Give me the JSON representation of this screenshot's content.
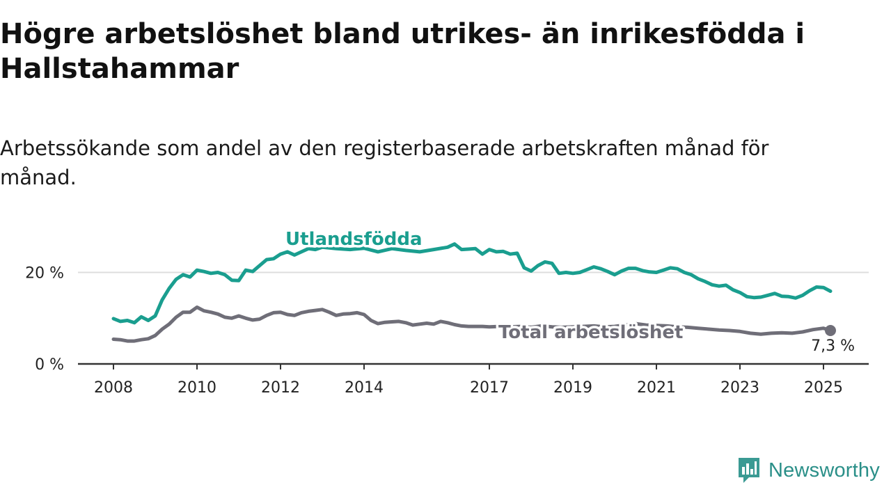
{
  "title": "Högre arbetslöshet bland utrikes- än inrikesfödda i Hallstahammar",
  "subtitle": "Arbetssökande som andel av den registerbaserade arbetskraften månad för månad.",
  "brand": {
    "name": "Newsworthy",
    "icon": "newsworthy-logo-icon",
    "color": "#3a9a93"
  },
  "colors": {
    "utlandsfodda": "#1a9e8f",
    "total": "#6f6e78",
    "grid": "#dddddd",
    "axis": "#333333"
  },
  "chart_data": {
    "type": "line",
    "title": "Högre arbetslöshet bland utrikes- än inrikesfödda i Hallstahammar",
    "subtitle": "Arbetssökande som andel av den registerbaserade arbetskraften månad för månad.",
    "xlabel": "",
    "ylabel": "",
    "xlim": [
      "2008-01",
      "2025-07"
    ],
    "ylim": [
      0,
      30
    ],
    "grid": "horizontal",
    "legend": "inline labels",
    "x_ticks": [
      "2008",
      "2010",
      "2012",
      "2014",
      "2017",
      "2019",
      "2021",
      "2023",
      "2025"
    ],
    "y_ticks": [
      {
        "value": 0,
        "label": "0 %"
      },
      {
        "value": 20,
        "label": "20 %"
      }
    ],
    "end_label": {
      "series": "Total arbetslöshet",
      "x": "2025-03",
      "value": 7.3,
      "label": "7,3 %"
    },
    "series": [
      {
        "name": "Utlandsfödda",
        "color": "#1a9e8f",
        "points": [
          [
            "2008-01",
            9.9
          ],
          [
            "2008-03",
            9.3
          ],
          [
            "2008-05",
            9.5
          ],
          [
            "2008-07",
            9.0
          ],
          [
            "2008-09",
            10.3
          ],
          [
            "2008-11",
            9.5
          ],
          [
            "2009-01",
            10.5
          ],
          [
            "2009-03",
            14.0
          ],
          [
            "2009-05",
            16.5
          ],
          [
            "2009-07",
            18.5
          ],
          [
            "2009-09",
            19.5
          ],
          [
            "2009-11",
            19.0
          ],
          [
            "2010-01",
            20.5
          ],
          [
            "2010-03",
            20.2
          ],
          [
            "2010-05",
            19.8
          ],
          [
            "2010-07",
            20.0
          ],
          [
            "2010-09",
            19.5
          ],
          [
            "2010-11",
            18.3
          ],
          [
            "2011-01",
            18.2
          ],
          [
            "2011-03",
            20.5
          ],
          [
            "2011-05",
            20.2
          ],
          [
            "2011-07",
            21.5
          ],
          [
            "2011-09",
            22.8
          ],
          [
            "2011-11",
            23.0
          ],
          [
            "2012-01",
            24.0
          ],
          [
            "2012-03",
            24.5
          ],
          [
            "2012-05",
            23.8
          ],
          [
            "2012-07",
            24.5
          ],
          [
            "2012-09",
            25.2
          ],
          [
            "2012-11",
            25.0
          ],
          [
            "2013-01",
            25.5
          ],
          [
            "2013-05",
            25.2
          ],
          [
            "2013-09",
            25.0
          ],
          [
            "2014-01",
            25.3
          ],
          [
            "2014-05",
            24.5
          ],
          [
            "2014-09",
            25.2
          ],
          [
            "2015-01",
            24.8
          ],
          [
            "2015-05",
            24.5
          ],
          [
            "2015-09",
            25.0
          ],
          [
            "2016-01",
            25.5
          ],
          [
            "2016-03",
            26.2
          ],
          [
            "2016-05",
            25.0
          ],
          [
            "2016-07",
            25.1
          ],
          [
            "2016-09",
            25.2
          ],
          [
            "2016-11",
            24.0
          ],
          [
            "2017-01",
            25.0
          ],
          [
            "2017-03",
            24.5
          ],
          [
            "2017-05",
            24.6
          ],
          [
            "2017-07",
            24.0
          ],
          [
            "2017-09",
            24.2
          ],
          [
            "2017-11",
            21.0
          ],
          [
            "2018-01",
            20.3
          ],
          [
            "2018-03",
            21.5
          ],
          [
            "2018-05",
            22.3
          ],
          [
            "2018-07",
            22.0
          ],
          [
            "2018-09",
            19.8
          ],
          [
            "2018-11",
            20.0
          ],
          [
            "2019-01",
            19.8
          ],
          [
            "2019-03",
            20.0
          ],
          [
            "2019-05",
            20.6
          ],
          [
            "2019-07",
            21.2
          ],
          [
            "2019-09",
            20.8
          ],
          [
            "2019-11",
            20.2
          ],
          [
            "2020-01",
            19.5
          ],
          [
            "2020-03",
            20.3
          ],
          [
            "2020-05",
            20.9
          ],
          [
            "2020-07",
            20.9
          ],
          [
            "2020-09",
            20.4
          ],
          [
            "2020-11",
            20.1
          ],
          [
            "2021-01",
            20.0
          ],
          [
            "2021-03",
            20.5
          ],
          [
            "2021-05",
            21.0
          ],
          [
            "2021-07",
            20.8
          ],
          [
            "2021-09",
            20.0
          ],
          [
            "2021-11",
            19.5
          ],
          [
            "2022-01",
            18.6
          ],
          [
            "2022-03",
            18.0
          ],
          [
            "2022-05",
            17.3
          ],
          [
            "2022-07",
            17.0
          ],
          [
            "2022-09",
            17.2
          ],
          [
            "2022-11",
            16.2
          ],
          [
            "2023-01",
            15.6
          ],
          [
            "2023-03",
            14.7
          ],
          [
            "2023-05",
            14.5
          ],
          [
            "2023-07",
            14.6
          ],
          [
            "2023-09",
            15.0
          ],
          [
            "2023-11",
            15.4
          ],
          [
            "2024-01",
            14.8
          ],
          [
            "2024-03",
            14.7
          ],
          [
            "2024-05",
            14.4
          ],
          [
            "2024-07",
            15.0
          ],
          [
            "2024-09",
            16.0
          ],
          [
            "2024-11",
            16.8
          ],
          [
            "2025-01",
            16.7
          ],
          [
            "2025-03",
            15.9
          ]
        ]
      },
      {
        "name": "Total arbetslöshet",
        "color": "#6f6e78",
        "points": [
          [
            "2008-01",
            5.4
          ],
          [
            "2008-03",
            5.3
          ],
          [
            "2008-05",
            5.0
          ],
          [
            "2008-07",
            5.0
          ],
          [
            "2008-09",
            5.3
          ],
          [
            "2008-11",
            5.5
          ],
          [
            "2009-01",
            6.2
          ],
          [
            "2009-03",
            7.6
          ],
          [
            "2009-05",
            8.7
          ],
          [
            "2009-07",
            10.2
          ],
          [
            "2009-09",
            11.3
          ],
          [
            "2009-11",
            11.3
          ],
          [
            "2010-01",
            12.4
          ],
          [
            "2010-03",
            11.6
          ],
          [
            "2010-05",
            11.3
          ],
          [
            "2010-07",
            10.9
          ],
          [
            "2010-09",
            10.2
          ],
          [
            "2010-11",
            10.0
          ],
          [
            "2011-01",
            10.5
          ],
          [
            "2011-03",
            10.0
          ],
          [
            "2011-05",
            9.6
          ],
          [
            "2011-07",
            9.8
          ],
          [
            "2011-09",
            10.6
          ],
          [
            "2011-11",
            11.2
          ],
          [
            "2012-01",
            11.3
          ],
          [
            "2012-03",
            10.8
          ],
          [
            "2012-05",
            10.6
          ],
          [
            "2012-07",
            11.2
          ],
          [
            "2012-09",
            11.5
          ],
          [
            "2012-11",
            11.7
          ],
          [
            "2013-01",
            11.9
          ],
          [
            "2013-03",
            11.3
          ],
          [
            "2013-05",
            10.6
          ],
          [
            "2013-07",
            10.9
          ],
          [
            "2013-09",
            11.0
          ],
          [
            "2013-11",
            11.2
          ],
          [
            "2014-01",
            10.8
          ],
          [
            "2014-03",
            9.5
          ],
          [
            "2014-05",
            8.8
          ],
          [
            "2014-07",
            9.1
          ],
          [
            "2014-09",
            9.2
          ],
          [
            "2014-11",
            9.3
          ],
          [
            "2015-01",
            9.0
          ],
          [
            "2015-03",
            8.5
          ],
          [
            "2015-05",
            8.7
          ],
          [
            "2015-07",
            8.9
          ],
          [
            "2015-09",
            8.7
          ],
          [
            "2015-11",
            9.3
          ],
          [
            "2016-01",
            9.0
          ],
          [
            "2016-03",
            8.6
          ],
          [
            "2016-05",
            8.3
          ],
          [
            "2016-07",
            8.2
          ],
          [
            "2016-09",
            8.2
          ],
          [
            "2016-11",
            8.2
          ],
          [
            "2017-01",
            8.1
          ],
          [
            "2017-04",
            8.2
          ],
          [
            "2017-07",
            8.1
          ],
          [
            "2017-10",
            8.2
          ],
          [
            "2018-01",
            8.0
          ],
          [
            "2018-04",
            8.3
          ],
          [
            "2018-07",
            8.1
          ],
          [
            "2018-10",
            8.0
          ],
          [
            "2019-01",
            8.1
          ],
          [
            "2019-04",
            8.2
          ],
          [
            "2019-07",
            8.3
          ],
          [
            "2019-10",
            8.1
          ],
          [
            "2020-01",
            8.2
          ],
          [
            "2020-04",
            8.5
          ],
          [
            "2020-07",
            8.8
          ],
          [
            "2020-10",
            8.5
          ],
          [
            "2021-01",
            8.4
          ],
          [
            "2021-04",
            8.3
          ],
          [
            "2021-07",
            8.1
          ],
          [
            "2021-10",
            8.0
          ],
          [
            "2022-01",
            7.8
          ],
          [
            "2022-04",
            7.6
          ],
          [
            "2022-07",
            7.4
          ],
          [
            "2022-10",
            7.3
          ],
          [
            "2023-01",
            7.1
          ],
          [
            "2023-04",
            6.7
          ],
          [
            "2023-07",
            6.5
          ],
          [
            "2023-10",
            6.7
          ],
          [
            "2024-01",
            6.8
          ],
          [
            "2024-04",
            6.7
          ],
          [
            "2024-07",
            7.0
          ],
          [
            "2024-10",
            7.5
          ],
          [
            "2025-01",
            7.8
          ],
          [
            "2025-03",
            7.3
          ]
        ]
      }
    ]
  }
}
